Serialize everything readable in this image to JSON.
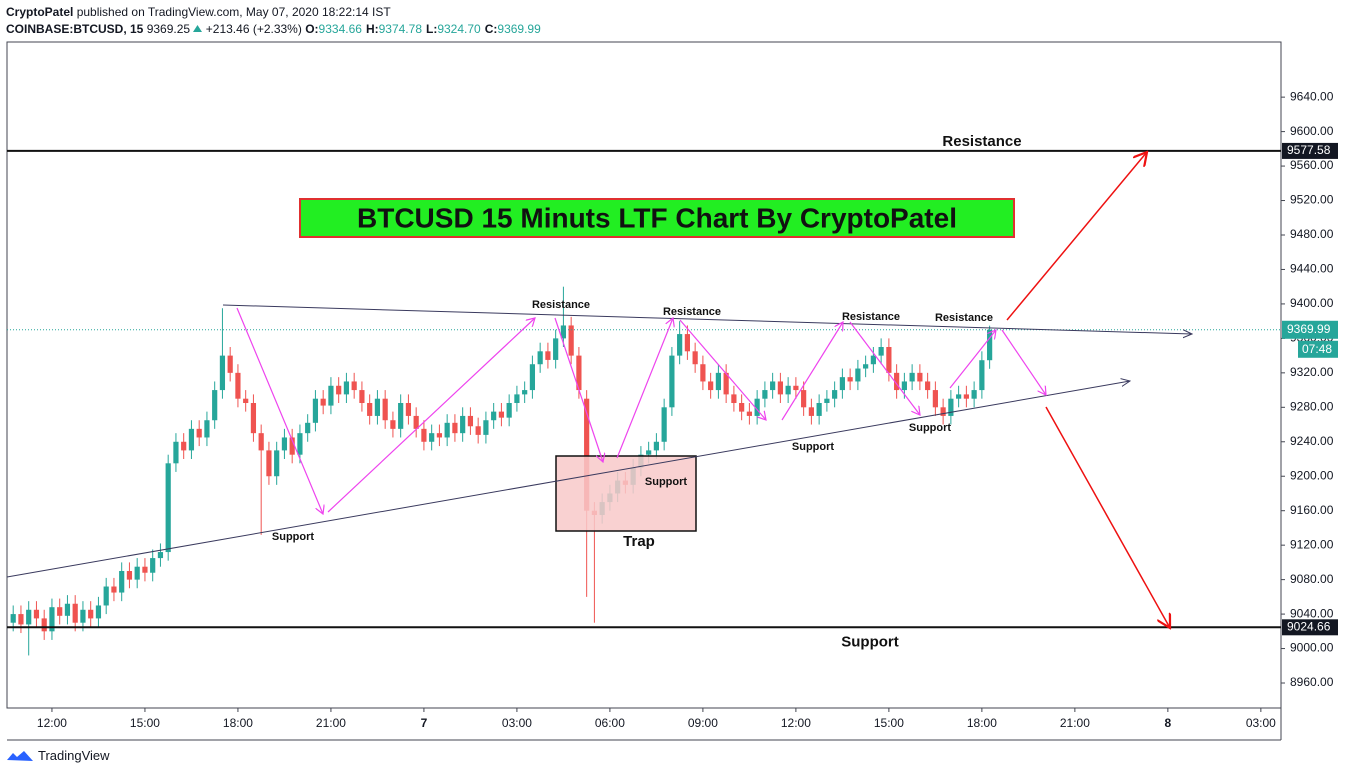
{
  "header": {
    "author": "CryptoPatel",
    "published": "published on TradingView.com, May 07, 2020 18:22:14 IST",
    "symbol": "COINBASE:BTCUSD, 15",
    "price": "9369.25",
    "change": "+213.46 (+2.33%)",
    "ohlc": [
      {
        "label": "O:",
        "value": "9334.66"
      },
      {
        "label": "H:",
        "value": "9374.78"
      },
      {
        "label": "L:",
        "value": "9324.70"
      },
      {
        "label": "C:",
        "value": "9369.99"
      }
    ]
  },
  "chart_data": {
    "type": "candlestick",
    "title": "BTCUSD 15 Minuts LTF Chart By CryptoPatel",
    "x": [
      10.75,
      11,
      11.25,
      11.5,
      11.75,
      12,
      12.25,
      12.5,
      12.75,
      13,
      13.25,
      13.5,
      13.75,
      14,
      14.25,
      14.5,
      14.75,
      15,
      15.25,
      15.5,
      15.75,
      16,
      16.25,
      16.5,
      16.75,
      17,
      17.25,
      17.5,
      17.75,
      18,
      18.25,
      18.5,
      18.75,
      19,
      19.25,
      19.5,
      19.75,
      20,
      20.25,
      20.5,
      20.75,
      21,
      21.25,
      21.5,
      21.75,
      22,
      22.25,
      22.5,
      22.75,
      23,
      23.25,
      23.5,
      23.75,
      24,
      24.25,
      24.5,
      24.75,
      25,
      25.25,
      25.5,
      25.75,
      26,
      26.25,
      26.5,
      26.75,
      27,
      27.25,
      27.5,
      27.75,
      28,
      28.25,
      28.5,
      28.75,
      29,
      29.25,
      29.5,
      29.75,
      30,
      30.25,
      30.5,
      30.75,
      31,
      31.25,
      31.5,
      31.75,
      32,
      32.25,
      32.5,
      32.75,
      33,
      33.25,
      33.5,
      33.75,
      34,
      34.25,
      34.5,
      34.75,
      35,
      35.25,
      35.5,
      35.75,
      36,
      36.25,
      36.5,
      36.75,
      37,
      37.25,
      37.5,
      37.75,
      38,
      38.25,
      38.5,
      38.75,
      39,
      39.25,
      39.5,
      39.75,
      40,
      40.25,
      40.5,
      40.75,
      41,
      41.25,
      41.5,
      41.75,
      42,
      42.25
    ],
    "open": [
      9030,
      9040,
      9028,
      9045,
      9035,
      9020,
      9048,
      9038,
      9052,
      9030,
      9045,
      9035,
      9050,
      9072,
      9065,
      9090,
      9080,
      9095,
      9088,
      9105,
      9112,
      9215,
      9240,
      9230,
      9255,
      9245,
      9265,
      9300,
      9340,
      9320,
      9290,
      9285,
      9250,
      9230,
      9200,
      9230,
      9245,
      9225,
      9250,
      9262,
      9290,
      9282,
      9305,
      9295,
      9310,
      9300,
      9285,
      9270,
      9290,
      9265,
      9255,
      9285,
      9270,
      9255,
      9240,
      9250,
      9245,
      9262,
      9250,
      9270,
      9258,
      9248,
      9265,
      9275,
      9268,
      9285,
      9295,
      9300,
      9330,
      9345,
      9335,
      9360,
      9375,
      9340,
      9290,
      9160,
      9155,
      9170,
      9180,
      9195,
      9190,
      9210,
      9225,
      9230,
      9240,
      9280,
      9340,
      9365,
      9345,
      9330,
      9310,
      9300,
      9320,
      9295,
      9285,
      9275,
      9270,
      9290,
      9300,
      9310,
      9295,
      9305,
      9300,
      9280,
      9270,
      9285,
      9290,
      9300,
      9315,
      9310,
      9325,
      9330,
      9340,
      9350,
      9320,
      9300,
      9310,
      9320,
      9310,
      9300,
      9280,
      9270,
      9290,
      9295,
      9290,
      9300,
      9334.66
    ],
    "high": [
      9050,
      9050,
      9055,
      9055,
      9045,
      9058,
      9058,
      9062,
      9062,
      9055,
      9055,
      9060,
      9082,
      9082,
      9100,
      9100,
      9105,
      9105,
      9115,
      9122,
      9225,
      9250,
      9250,
      9265,
      9265,
      9275,
      9310,
      9395,
      9350,
      9330,
      9300,
      9295,
      9260,
      9240,
      9240,
      9255,
      9255,
      9260,
      9272,
      9300,
      9300,
      9315,
      9315,
      9320,
      9320,
      9310,
      9295,
      9300,
      9300,
      9275,
      9295,
      9295,
      9280,
      9265,
      9260,
      9260,
      9272,
      9272,
      9280,
      9280,
      9268,
      9275,
      9285,
      9285,
      9295,
      9305,
      9310,
      9340,
      9355,
      9355,
      9370,
      9420,
      9385,
      9350,
      9300,
      9170,
      9180,
      9190,
      9205,
      9205,
      9220,
      9235,
      9240,
      9250,
      9290,
      9350,
      9380,
      9375,
      9355,
      9340,
      9320,
      9330,
      9330,
      9305,
      9295,
      9285,
      9300,
      9310,
      9320,
      9320,
      9315,
      9315,
      9310,
      9290,
      9295,
      9300,
      9310,
      9325,
      9325,
      9335,
      9340,
      9350,
      9360,
      9360,
      9330,
      9320,
      9330,
      9330,
      9320,
      9310,
      9290,
      9300,
      9305,
      9305,
      9310,
      9345,
      9374.78
    ],
    "low": [
      9020,
      9018,
      8992,
      9025,
      9010,
      9010,
      9028,
      9028,
      9020,
      9020,
      9025,
      9025,
      9040,
      9055,
      9055,
      9070,
      9070,
      9078,
      9078,
      9095,
      9102,
      9205,
      9220,
      9220,
      9235,
      9235,
      9255,
      9290,
      9310,
      9280,
      9275,
      9240,
      9132,
      9190,
      9190,
      9220,
      9215,
      9215,
      9240,
      9252,
      9272,
      9272,
      9285,
      9285,
      9290,
      9275,
      9260,
      9260,
      9255,
      9245,
      9245,
      9260,
      9245,
      9230,
      9230,
      9235,
      9235,
      9240,
      9240,
      9248,
      9238,
      9238,
      9255,
      9258,
      9258,
      9275,
      9285,
      9290,
      9320,
      9325,
      9325,
      9350,
      9330,
      9290,
      9060,
      9030,
      9145,
      9160,
      9170,
      9180,
      9180,
      9200,
      9215,
      9220,
      9230,
      9270,
      9330,
      9335,
      9320,
      9300,
      9290,
      9290,
      9285,
      9275,
      9265,
      9260,
      9260,
      9280,
      9290,
      9285,
      9285,
      9290,
      9270,
      9260,
      9260,
      9275,
      9280,
      9290,
      9300,
      9300,
      9315,
      9320,
      9330,
      9310,
      9290,
      9290,
      9300,
      9300,
      9290,
      9270,
      9260,
      9260,
      9280,
      9280,
      9280,
      9290,
      9324.7
    ],
    "close": [
      9040,
      9028,
      9045,
      9035,
      9020,
      9048,
      9038,
      9052,
      9030,
      9045,
      9035,
      9050,
      9072,
      9065,
      9090,
      9080,
      9095,
      9088,
      9105,
      9112,
      9215,
      9240,
      9230,
      9255,
      9245,
      9265,
      9300,
      9340,
      9320,
      9290,
      9285,
      9250,
      9230,
      9200,
      9230,
      9245,
      9225,
      9250,
      9262,
      9290,
      9282,
      9305,
      9295,
      9310,
      9300,
      9285,
      9270,
      9290,
      9265,
      9255,
      9285,
      9270,
      9255,
      9240,
      9250,
      9245,
      9262,
      9250,
      9270,
      9258,
      9248,
      9265,
      9275,
      9268,
      9285,
      9295,
      9300,
      9330,
      9345,
      9335,
      9360,
      9375,
      9340,
      9300,
      9160,
      9155,
      9170,
      9180,
      9195,
      9190,
      9210,
      9225,
      9230,
      9240,
      9280,
      9340,
      9365,
      9345,
      9330,
      9310,
      9300,
      9320,
      9295,
      9285,
      9275,
      9270,
      9290,
      9300,
      9310,
      9295,
      9305,
      9300,
      9280,
      9270,
      9285,
      9290,
      9300,
      9315,
      9310,
      9325,
      9330,
      9340,
      9350,
      9320,
      9300,
      9310,
      9320,
      9310,
      9300,
      9280,
      9270,
      9290,
      9295,
      9290,
      9300,
      9334.66,
      9369.99
    ],
    "up_color": "#26a69a",
    "down_color": "#ef5350",
    "xlim": [
      10.55,
      51.65
    ],
    "xticks": [
      {
        "value": 12,
        "label": "12:00"
      },
      {
        "value": 15,
        "label": "15:00"
      },
      {
        "value": 18,
        "label": "18:00"
      },
      {
        "value": 21,
        "label": "21:00"
      },
      {
        "value": 24,
        "label": "7"
      },
      {
        "value": 27,
        "label": "03:00"
      },
      {
        "value": 30,
        "label": "06:00"
      },
      {
        "value": 33,
        "label": "09:00"
      },
      {
        "value": 36,
        "label": "12:00"
      },
      {
        "value": 39,
        "label": "15:00"
      },
      {
        "value": 42,
        "label": "18:00"
      },
      {
        "value": 45,
        "label": "21:00"
      },
      {
        "value": 48,
        "label": "8"
      },
      {
        "value": 51,
        "label": "03:00"
      }
    ],
    "ylim": [
      8931,
      9704
    ],
    "yticks": [
      {
        "value": 8960,
        "label": "8960.00"
      },
      {
        "value": 9000,
        "label": "9000.00"
      },
      {
        "value": 9040,
        "label": "9040.00"
      },
      {
        "value": 9080,
        "label": "9080.00"
      },
      {
        "value": 9120,
        "label": "9120.00"
      },
      {
        "value": 9160,
        "label": "9160.00"
      },
      {
        "value": 9200,
        "label": "9200.00"
      },
      {
        "value": 9240,
        "label": "9240.00"
      },
      {
        "value": 9280,
        "label": "9280.00"
      },
      {
        "value": 9320,
        "label": "9320.00"
      },
      {
        "value": 9360,
        "label": "9360.00"
      },
      {
        "value": 9400,
        "label": "9400.00"
      },
      {
        "value": 9440,
        "label": "9440.00"
      },
      {
        "value": 9480,
        "label": "9480.00"
      },
      {
        "value": 9520,
        "label": "9520.00"
      },
      {
        "value": 9560,
        "label": "9560.00"
      },
      {
        "value": 9600,
        "label": "9600.00"
      },
      {
        "value": 9640,
        "label": "9640.00"
      }
    ],
    "grid": false,
    "levels": [
      {
        "name": "Resistance",
        "value": 9577.58
      },
      {
        "name": "Support",
        "value": 9024.66
      }
    ],
    "last_price": {
      "value": 9369.99,
      "countdown": "07:48",
      "color": "#26a69a"
    },
    "annotations": [
      "Resistance",
      "Resistance",
      "Resistance",
      "Resistance",
      "Support",
      "Support",
      "Support",
      "Support",
      "Trap"
    ]
  },
  "footer": "TradingView"
}
